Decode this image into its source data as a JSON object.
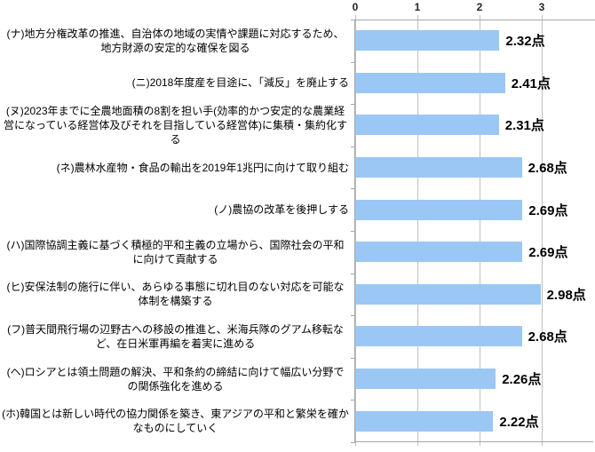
{
  "chart_data": {
    "type": "bar",
    "orientation": "horizontal",
    "title": "",
    "unit_suffix": "点",
    "axis": {
      "position": "top",
      "min": 0,
      "max": 3,
      "ticks": [
        "0",
        "1",
        "2",
        "3"
      ]
    },
    "grid": true,
    "bar_color": "#9BC7F5",
    "gridline_color": "#BFBFBF",
    "axis_line_color": "#A6A6A6",
    "categories": [
      "(ナ)地方分権改革の推進、自治体の地域の実情や課題に対応するため、地方財源の安定的な確保を図る",
      "(ニ)2018年度産を目途に、「減反」を廃止する",
      "(ヌ)2023年までに全農地面積の8割を担い手(効率的かつ安定的な農業経営になっている経営体及びそれを目指している経営体)に集積・集約化する",
      "(ネ)農林水産物・食品の輸出を2019年1兆円に向けて取り組む",
      "(ノ)農協の改革を後押しする",
      "(ハ)国際協調主義に基づく積極的平和主義の立場から、国際社会の平和に向けて貢献する",
      "(ヒ)安保法制の施行に伴い、あらゆる事態に切れ目のない対応を可能な体制を構築する",
      "(フ)普天間飛行場の辺野古への移設の推進と、米海兵隊のグアム移転など、在日米軍再編を着実に進める",
      "(ヘ)ロシアとは領土問題の解決、平和条約の締結に向けて幅広い分野での関係強化を進める",
      "(ホ)韓国とは新しい時代の協力関係を築き、東アジアの平和と繁栄を確かなものにしていく"
    ],
    "values": [
      2.32,
      2.41,
      2.31,
      2.68,
      2.69,
      2.69,
      2.98,
      2.68,
      2.26,
      2.22
    ],
    "value_labels": [
      "2.32点",
      "2.41点",
      "2.31点",
      "2.68点",
      "2.69点",
      "2.69点",
      "2.98点",
      "2.68点",
      "2.26点",
      "2.22点"
    ]
  }
}
